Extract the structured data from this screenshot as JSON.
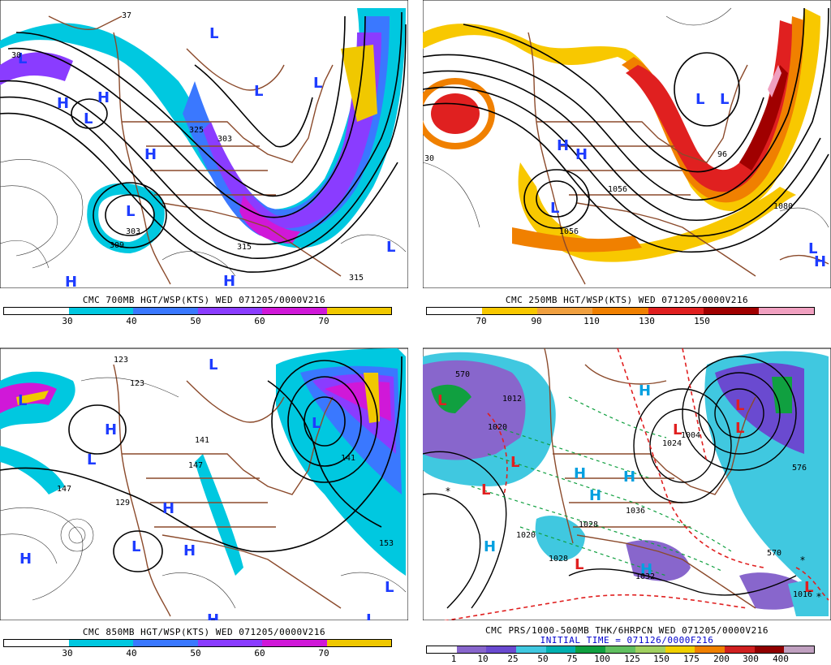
{
  "colors": {
    "wind_30_40": "#00c8e0",
    "wind_40_50": "#3a78ff",
    "wind_50_60": "#8a3cff",
    "wind_60_70": "#d018d8",
    "wind_70plus": "#f0c800",
    "jet_90": "#f8c800",
    "jet_110": "#f08000",
    "jet_130": "#e02020",
    "jet_150": "#a00000",
    "jet_max": "#f0a0c0",
    "geography": "#8b4a2b",
    "high_symbol": "#1e3cff",
    "low_symbol": "#1e3cff"
  },
  "panels": {
    "p700": {
      "caption": "CMC 700MB HGT/WSP(KTS) WED 071205/0000V216",
      "colorbar_labels": [
        "30",
        "40",
        "50",
        "60",
        "70"
      ],
      "colorbar_colors": [
        "#ffffff",
        "#00c8e0",
        "#3a78ff",
        "#8a3cff",
        "#d018d8",
        "#f0c800"
      ],
      "contour_labels": [
        "30",
        "303",
        "309",
        "315",
        "315",
        "325",
        "303",
        "37"
      ],
      "symbols": [
        "L",
        "H",
        "H",
        "L",
        "H",
        "L",
        "L",
        "H",
        "H",
        "L",
        "L",
        "L"
      ]
    },
    "p250": {
      "caption": "CMC 250MB HGT/WSP(KTS) WED 071205/0000V216",
      "colorbar_labels": [
        "70",
        "90",
        "110",
        "130",
        "150"
      ],
      "colorbar_colors": [
        "#ffffff",
        "#f8c800",
        "#f0a040",
        "#f08000",
        "#e02020",
        "#a00000",
        "#f0a0c0"
      ],
      "contour_labels": [
        "1056",
        "1080",
        "1056",
        "30",
        "96"
      ],
      "symbols": [
        "H",
        "H",
        "L",
        "L",
        "L",
        "L",
        "H"
      ]
    },
    "p850": {
      "caption": "CMC 850MB HGT/WSP(KTS) WED 071205/0000V216",
      "colorbar_labels": [
        "30",
        "40",
        "50",
        "60",
        "70"
      ],
      "colorbar_colors": [
        "#ffffff",
        "#00c8e0",
        "#3a78ff",
        "#8a3cff",
        "#d018d8",
        "#f0c800"
      ],
      "contour_labels": [
        "123",
        "123",
        "141",
        "147",
        "147",
        "153",
        "129",
        "141"
      ],
      "symbols": [
        "L",
        "H",
        "L",
        "H",
        "L",
        "H",
        "L",
        "H",
        "H",
        "L",
        "L",
        "L"
      ]
    },
    "pprs": {
      "caption": "CMC PRS/1000-500MB THK/6HRPCN WED 071205/0000V216",
      "subcaption": "INITIAL TIME = 071126/0000F216",
      "colorbar_labels": [
        "1",
        "10",
        "25",
        "50",
        "75",
        "100",
        "125",
        "150",
        "175",
        "200",
        "300",
        "400"
      ],
      "colorbar_colors": [
        "#ffffff",
        "#8866cc",
        "#6a4ad0",
        "#40c8e0",
        "#00b0b0",
        "#10a040",
        "#60c060",
        "#a0d060",
        "#f0d000",
        "#f08000",
        "#d02020",
        "#900000",
        "#c0a0c0"
      ],
      "contour_labels": [
        "570",
        "1012",
        "1004",
        "1028",
        "1020",
        "1036",
        "1032",
        "570",
        "1016",
        "1028",
        "1024",
        "1020",
        "576"
      ],
      "symbols": [
        "L",
        "L",
        "L",
        "L",
        "H",
        "H",
        "H",
        "H",
        "H",
        "L",
        "L",
        "L",
        "L",
        "H"
      ]
    }
  }
}
